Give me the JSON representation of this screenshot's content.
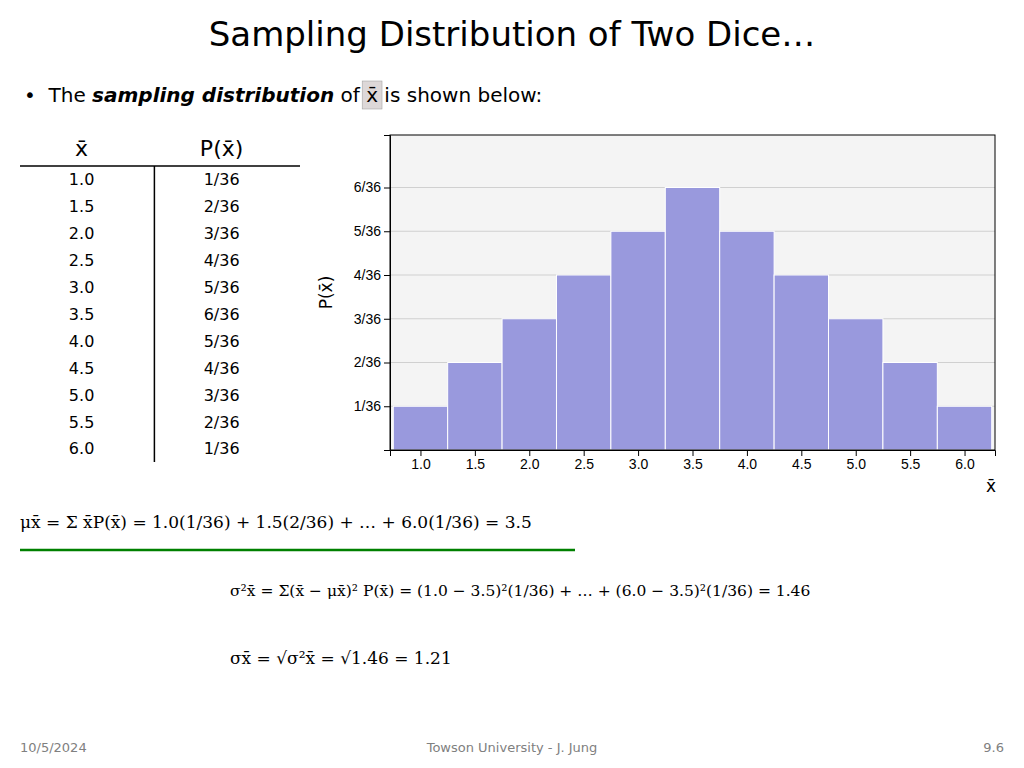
{
  "chart_data": {
    "type": "bar",
    "title": "Sampling Distribution of Two Dice…",
    "subtitle": [
      "•  The ",
      "sampling distribution",
      " of ",
      "x̄",
      " is shown below:"
    ],
    "x": [
      1.0,
      1.5,
      2.0,
      2.5,
      3.0,
      3.5,
      4.0,
      4.5,
      5.0,
      5.5,
      6.0
    ],
    "values": [
      0.027777777777777776,
      0.05555555555555555,
      0.08333333333333333,
      0.1111111111111111,
      0.1388888888888889,
      0.16666666666666666,
      0.1388888888888889,
      0.1111111111111111,
      0.08333333333333333,
      0.05555555555555555,
      0.027777777777777776
    ],
    "color": "#9999dd",
    "xlabel": "x̄",
    "ylabel": "P(x̄)",
    "xlim": [
      0.72,
      6.28
    ],
    "xticks": [
      {
        "value": 1,
        "label": "1.0"
      },
      1.5,
      {
        "value": 2,
        "label": "2.0"
      },
      2.5,
      {
        "value": 3,
        "label": "3.0"
      },
      3.5,
      {
        "value": 4,
        "label": "4.0"
      },
      4.5,
      {
        "value": 5,
        "label": "5.0"
      },
      5.5,
      {
        "value": 6,
        "label": "6.0"
      }
    ],
    "ylim": [
      0,
      0.2
    ],
    "yticks": [
      {
        "value": 0.027777777777777776,
        "label": "1/36"
      },
      {
        "value": 0.05555555555555555,
        "label": "2/36"
      },
      {
        "value": 0.08333333333333333,
        "label": "3/36"
      },
      {
        "value": 0.1111111111111111,
        "label": "4/36"
      },
      {
        "value": 0.1388888888888889,
        "label": "5/36"
      },
      {
        "value": 0.16666666666666666,
        "label": "6/36"
      }
    ],
    "grid": true,
    "table": {
      "columns": [
        "x̄",
        "P(x̄)"
      ],
      "rows": [
        [
          "1.0",
          "1/36"
        ],
        [
          "1.5",
          "2/36"
        ],
        [
          "2.0",
          "3/36"
        ],
        [
          "2.5",
          "4/36"
        ],
        [
          "3.0",
          "5/36"
        ],
        [
          "3.5",
          "6/36"
        ],
        [
          "4.0",
          "5/36"
        ],
        [
          "4.5",
          "4/36"
        ],
        [
          "5.0",
          "3/36"
        ],
        [
          "5.5",
          "2/36"
        ],
        [
          "6.0",
          "1/36"
        ]
      ]
    },
    "annotations": [
      "μx̄ = Σ x̄P(x̄) = 1.0(1/36) + 1.5(2/36) + … + 6.0(1/36) = 3.5",
      "σ²x̄ = Σ(x̄ − μx̄)² P(x̄) = (1.0 − 3.5)²(1/36) + … + (6.0 − 3.5)²(1/36) = 1.46",
      "σx̄ = √σ²x̄ = √1.46 = 1.21"
    ],
    "footer": [
      "10/5/2024",
      "Towson University - J. Jung",
      "9.6"
    ]
  }
}
